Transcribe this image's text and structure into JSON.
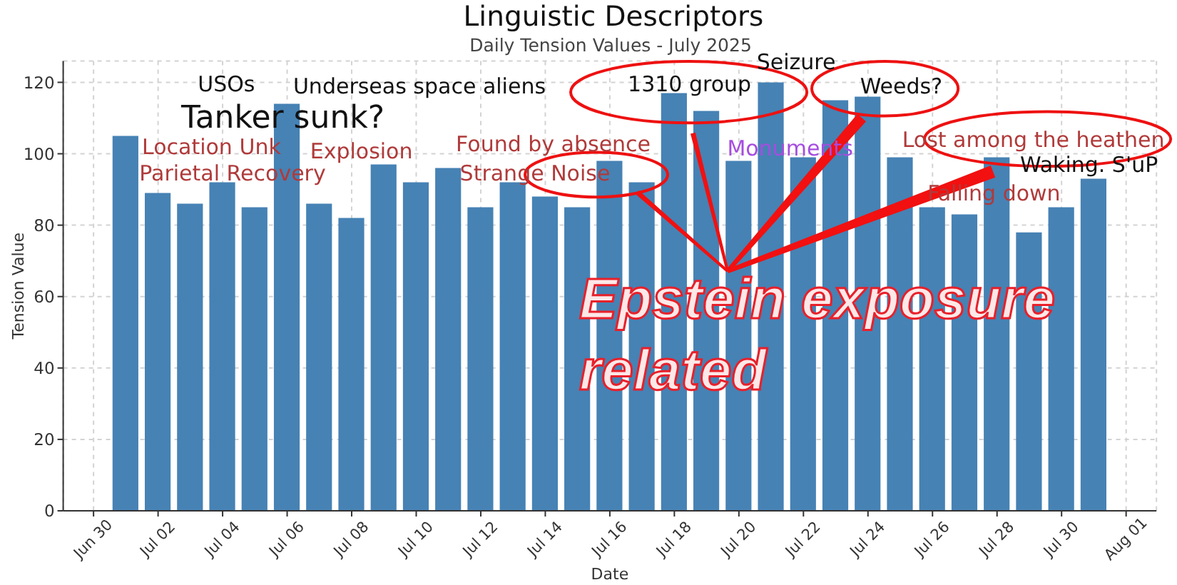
{
  "chart_data": {
    "type": "bar",
    "title": "Linguistic Descriptors",
    "subtitle": "Daily Tension Values - July 2025",
    "xlabel": "Date",
    "ylabel": "Tension Value",
    "x": [
      "2025-07-01",
      "2025-07-02",
      "2025-07-03",
      "2025-07-04",
      "2025-07-05",
      "2025-07-06",
      "2025-07-07",
      "2025-07-08",
      "2025-07-09",
      "2025-07-10",
      "2025-07-11",
      "2025-07-12",
      "2025-07-13",
      "2025-07-14",
      "2025-07-15",
      "2025-07-16",
      "2025-07-17",
      "2025-07-18",
      "2025-07-19",
      "2025-07-20",
      "2025-07-21",
      "2025-07-22",
      "2025-07-23",
      "2025-07-24",
      "2025-07-25",
      "2025-07-26",
      "2025-07-27",
      "2025-07-28",
      "2025-07-29",
      "2025-07-30",
      "2025-07-31"
    ],
    "values": [
      105,
      89,
      86,
      92,
      85,
      114,
      86,
      82,
      97,
      92,
      96,
      85,
      92,
      88,
      85,
      98,
      92,
      117,
      112,
      98,
      120,
      99,
      115,
      116,
      99,
      85,
      83,
      99,
      78,
      85,
      93
    ],
    "color": "#4682b4",
    "xlim": [
      "2025-06-29T01:26",
      "2025-08-01T22:34"
    ],
    "xticks": [
      {
        "value": "2025-06-30",
        "label": "Jun 30"
      },
      {
        "value": "2025-07-02",
        "label": "Jul 02"
      },
      {
        "value": "2025-07-04",
        "label": "Jul 04"
      },
      {
        "value": "2025-07-06",
        "label": "Jul 06"
      },
      {
        "value": "2025-07-08",
        "label": "Jul 08"
      },
      {
        "value": "2025-07-10",
        "label": "Jul 10"
      },
      {
        "value": "2025-07-12",
        "label": "Jul 12"
      },
      {
        "value": "2025-07-14",
        "label": "Jul 14"
      },
      {
        "value": "2025-07-16",
        "label": "Jul 16"
      },
      {
        "value": "2025-07-18",
        "label": "Jul 18"
      },
      {
        "value": "2025-07-20",
        "label": "Jul 20"
      },
      {
        "value": "2025-07-22",
        "label": "Jul 22"
      },
      {
        "value": "2025-07-24",
        "label": "Jul 24"
      },
      {
        "value": "2025-07-26",
        "label": "Jul 26"
      },
      {
        "value": "2025-07-28",
        "label": "Jul 28"
      },
      {
        "value": "2025-07-30",
        "label": "Jul 30"
      },
      {
        "value": "2025-08-01",
        "label": "Aug 01"
      }
    ],
    "ylim": [
      0,
      126
    ],
    "yticks": [
      0,
      20,
      40,
      60,
      80,
      100,
      120
    ],
    "grid": true,
    "annotations": [
      "USOs",
      "Underseas space aliens",
      "Tanker sunk?",
      "Location Unk",
      "Parietal Recovery",
      "Explosion",
      "Found by absence",
      "Strange Noise",
      "1310 group",
      "Seizure",
      "Weeds?",
      "Monuments",
      "Lost among the heathen",
      "Waking. S'uP",
      "Falling down",
      "Epstein exposure related"
    ]
  }
}
